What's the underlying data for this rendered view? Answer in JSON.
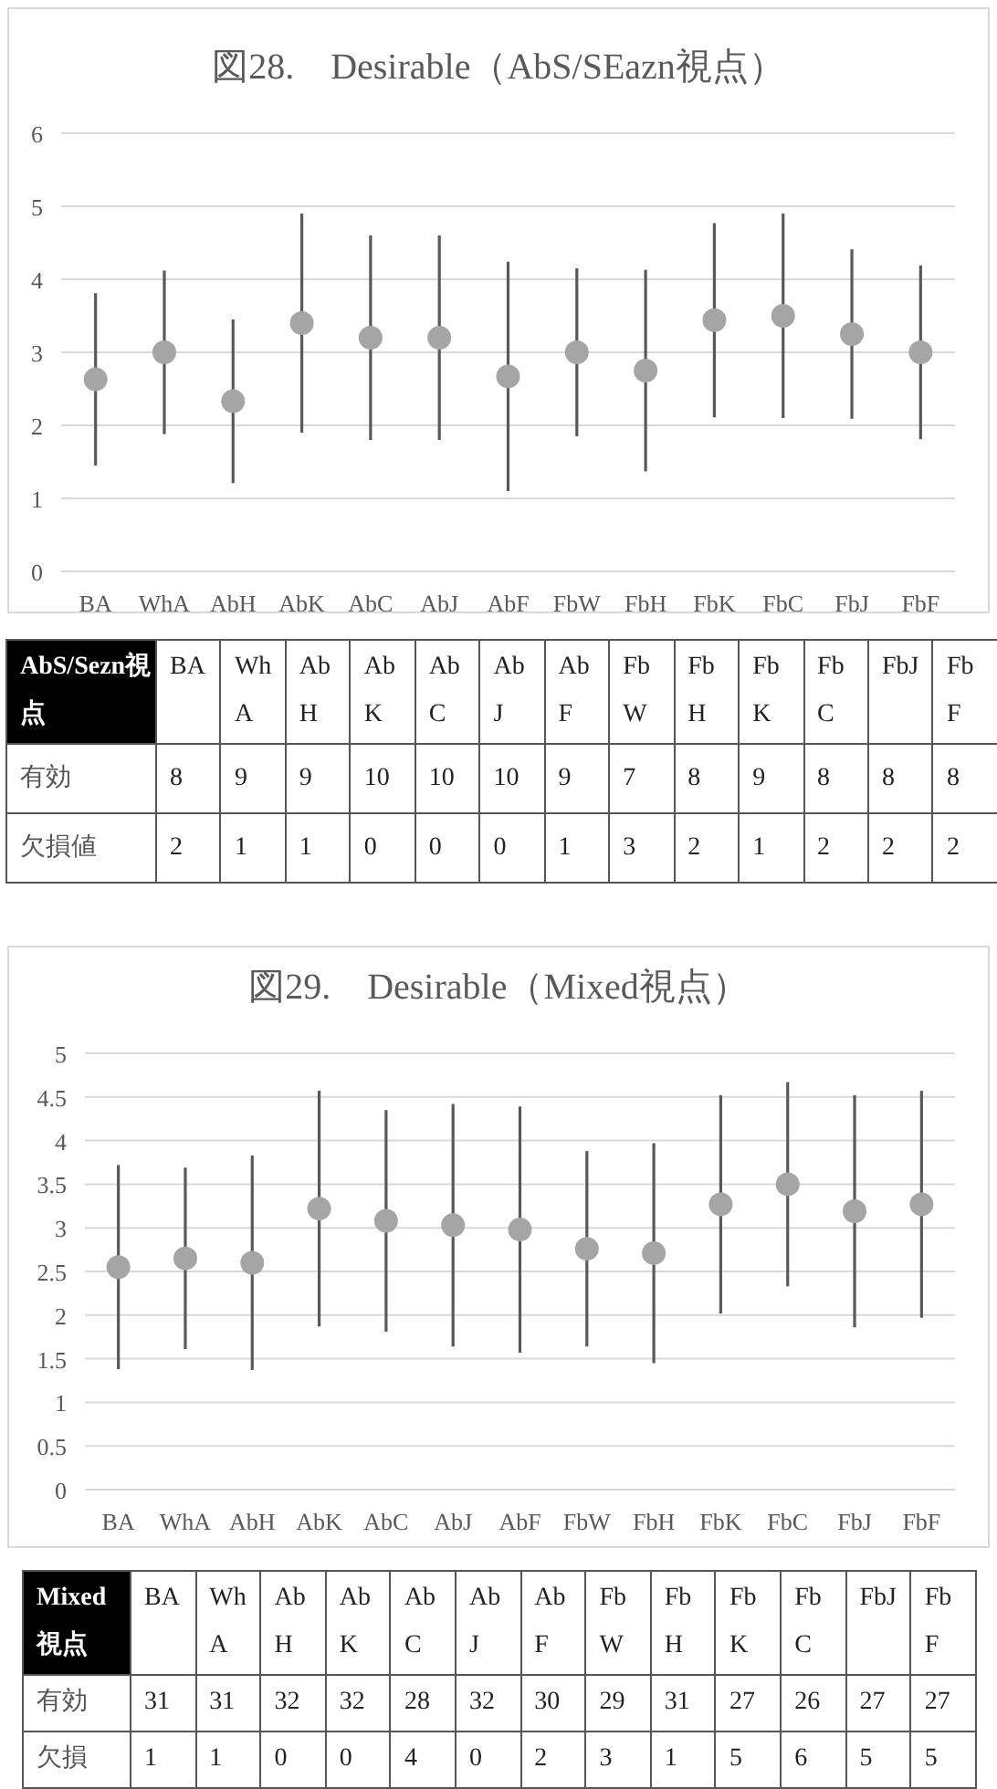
{
  "chart_data": [
    {
      "type": "scatter",
      "title": "図28.　Desirable（AbS/SEazn視点）",
      "categories": [
        "BA",
        "WhA",
        "AbH",
        "AbK",
        "AbC",
        "AbJ",
        "AbF",
        "FbW",
        "FbH",
        "FbK",
        "FbC",
        "FbJ",
        "FbF"
      ],
      "values": [
        2.63,
        3.0,
        2.33,
        3.4,
        3.2,
        3.2,
        2.67,
        3.0,
        2.75,
        3.44,
        3.5,
        3.25,
        3.0
      ],
      "errors": [
        1.18,
        1.12,
        1.12,
        1.5,
        1.4,
        1.4,
        1.57,
        1.15,
        1.38,
        1.33,
        1.4,
        1.16,
        1.19
      ],
      "color": "#a5a5a5",
      "marker": "circle",
      "ylim": [
        0,
        6
      ],
      "yticks": [
        0,
        1,
        2,
        3,
        4,
        5,
        6
      ],
      "grid": "y"
    },
    {
      "type": "heatmap",
      "title": "AbS/Sezn視点",
      "categories": [
        "BA",
        "WhA",
        "AbH",
        "AbK",
        "AbC",
        "AbJ",
        "AbF",
        "FbW",
        "FbH",
        "FbK",
        "FbC",
        "FbJ",
        "FbF"
      ],
      "y_categories": [
        "有効",
        "欠損値"
      ],
      "cells": [
        [
          8,
          9,
          9,
          10,
          10,
          10,
          9,
          7,
          8,
          9,
          8,
          8,
          8
        ],
        [
          2,
          1,
          1,
          0,
          0,
          0,
          1,
          3,
          2,
          1,
          2,
          2,
          2
        ]
      ],
      "data_labels": true
    },
    {
      "type": "scatter",
      "title": "図29.　Desirable（Mixed視点）",
      "categories": [
        "BA",
        "WhA",
        "AbH",
        "AbK",
        "AbC",
        "AbJ",
        "AbF",
        "FbW",
        "FbH",
        "FbK",
        "FbC",
        "FbJ",
        "FbF"
      ],
      "values": [
        2.55,
        2.65,
        2.6,
        3.22,
        3.08,
        3.03,
        2.98,
        2.76,
        2.71,
        3.27,
        3.5,
        3.19,
        3.27
      ],
      "errors": [
        1.17,
        1.04,
        1.23,
        1.35,
        1.27,
        1.39,
        1.41,
        1.12,
        1.26,
        1.25,
        1.17,
        1.33,
        1.3
      ],
      "color": "#a5a5a5",
      "marker": "circle",
      "ylim": [
        0,
        5
      ],
      "yticks": [
        0,
        0.5,
        1,
        1.5,
        2,
        2.5,
        3,
        3.5,
        4,
        4.5,
        5
      ],
      "grid": "y"
    },
    {
      "type": "heatmap",
      "title": "Mixed視点",
      "categories": [
        "BA",
        "WhA",
        "AbH",
        "AbK",
        "AbC",
        "AbJ",
        "AbF",
        "FbW",
        "FbH",
        "FbK",
        "FbC",
        "FbJ",
        "FbF"
      ],
      "y_categories": [
        "有効",
        "欠損"
      ],
      "cells": [
        [
          31,
          31,
          32,
          32,
          28,
          32,
          30,
          29,
          31,
          27,
          26,
          27,
          27
        ],
        [
          1,
          1,
          0,
          0,
          4,
          0,
          2,
          3,
          1,
          5,
          6,
          5,
          5
        ]
      ],
      "data_labels": true
    }
  ]
}
